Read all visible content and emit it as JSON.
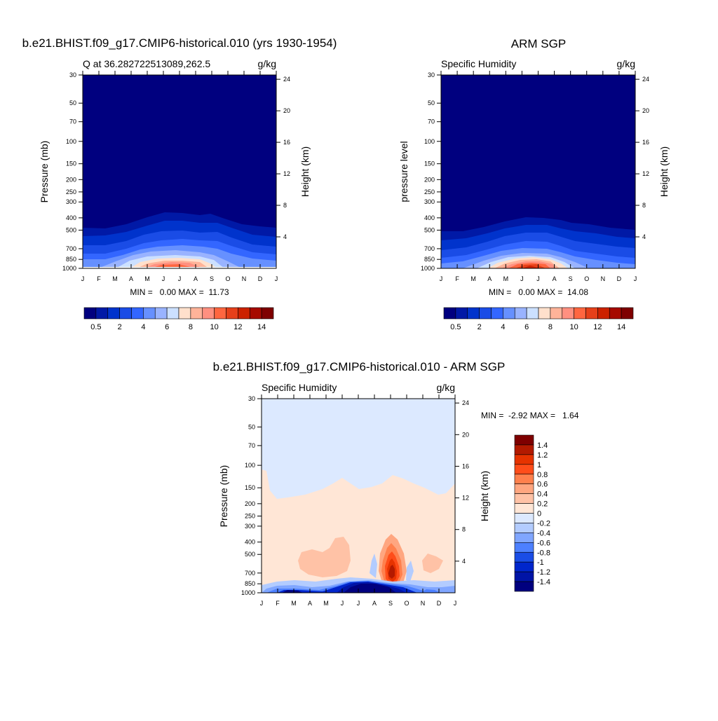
{
  "panel1": {
    "title": "b.e21.BHIST.f09_g17.CMIP6-historical.010 (yrs 1930-1954)",
    "left_label": "Q at 36.282722513089,262.5",
    "unit": "g/kg",
    "ylabel": "Pressure (mb)",
    "ylabel_right": "Height (km)",
    "stats": "MIN =   0.00 MAX =  11.73"
  },
  "panel2": {
    "title": "ARM SGP",
    "left_label": "Specific Humidity",
    "unit": "g/kg",
    "ylabel": "pressure level",
    "ylabel_right": "Height (km)",
    "stats": "MIN =   0.00 MAX =  14.08"
  },
  "panel3": {
    "title": "b.e21.BHIST.f09_g17.CMIP6-historical.010 - ARM SGP",
    "left_label": "Specific Humidity",
    "unit": "g/kg",
    "ylabel": "Pressure (mb)",
    "ylabel_right": "Height (km)",
    "stats": "MIN =  -2.92 MAX =   1.64"
  },
  "axes": {
    "months": [
      "J",
      "F",
      "M",
      "A",
      "M",
      "J",
      "J",
      "A",
      "S",
      "O",
      "N",
      "D",
      "J"
    ],
    "pressure_ticks": [
      "30",
      "50",
      "70",
      "100",
      "150",
      "200",
      "250",
      "300",
      "400",
      "500",
      "700",
      "850",
      "1000"
    ],
    "height_ticks": [
      "24",
      "20",
      "16",
      "12",
      "8",
      "4"
    ]
  },
  "colorbar_top": {
    "labels": [
      "0.5",
      "2",
      "4",
      "6",
      "8",
      "10",
      "12",
      "14"
    ],
    "colors": [
      "#00007f",
      "#0019a6",
      "#0033cc",
      "#1a4ce6",
      "#3366ff",
      "#6690ff",
      "#99b3ff",
      "#cce0ff",
      "#ffe0cc",
      "#ffb399",
      "#ff9080",
      "#ff6640",
      "#e6401a",
      "#cc2200",
      "#a60a00",
      "#7f0000"
    ]
  },
  "colorbar_diff": {
    "labels": [
      "1.4",
      "1.2",
      "1",
      "0.8",
      "0.6",
      "0.4",
      "0.2",
      "0",
      "-0.2",
      "-0.4",
      "-0.6",
      "-0.8",
      "-1",
      "-1.2",
      "-1.4"
    ],
    "colors": [
      "#7f0000",
      "#b31a00",
      "#e63300",
      "#ff4d1a",
      "#ff804d",
      "#ffa680",
      "#ffc2a6",
      "#ffe6d6",
      "#dce9ff",
      "#b3ccff",
      "#80a6ff",
      "#4d80ff",
      "#1a4de6",
      "#0026cc",
      "#0014a6",
      "#00007f"
    ]
  },
  "chart_data": [
    {
      "type": "heatmap",
      "title": "b.e21.BHIST.f09_g17.CMIP6-historical.010 (yrs 1930-1954)",
      "xlabel": "",
      "ylabel": "Pressure (mb)",
      "x": [
        "J",
        "F",
        "M",
        "A",
        "M",
        "J",
        "J",
        "A",
        "S",
        "O",
        "N",
        "D",
        "J"
      ],
      "y_pressure": [
        1000,
        850,
        700,
        500,
        400,
        300,
        200,
        100,
        70,
        50,
        30
      ],
      "ylim": [
        1000,
        30
      ],
      "min": 0.0,
      "max": 11.73,
      "note": "Specific humidity g/kg; maximum near surface in June-August"
    },
    {
      "type": "heatmap",
      "title": "ARM SGP",
      "ylabel": "pressure level",
      "x": [
        "J",
        "F",
        "M",
        "A",
        "M",
        "J",
        "J",
        "A",
        "S",
        "O",
        "N",
        "D",
        "J"
      ],
      "ylim": [
        1000,
        30
      ],
      "min": 0.0,
      "max": 14.08
    },
    {
      "type": "heatmap",
      "title": "b.e21.BHIST.f09_g17.CMIP6-historical.010 - ARM SGP",
      "ylabel": "Pressure (mb)",
      "x": [
        "J",
        "F",
        "M",
        "A",
        "M",
        "J",
        "J",
        "A",
        "S",
        "O",
        "N",
        "D",
        "J"
      ],
      "ylim": [
        1000,
        30
      ],
      "min": -2.92,
      "max": 1.64
    }
  ]
}
